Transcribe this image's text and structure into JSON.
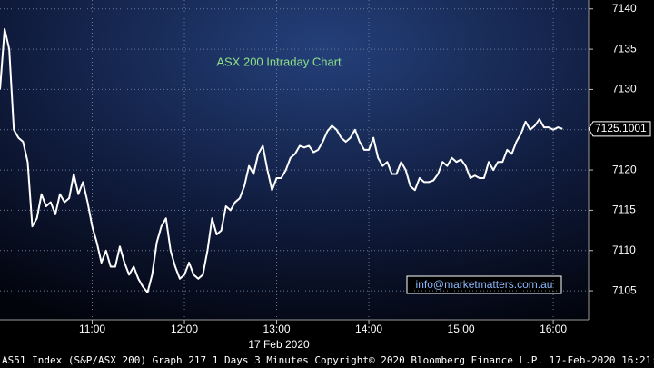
{
  "chart_data": {
    "type": "line",
    "title": "ASX 200 Intraday Chart",
    "annotations": [
      "info@marketmatters.com.au",
      "17 Feb 2020"
    ],
    "footer": "AS51 Index (S&P/ASX 200) Graph 217 1 Days 3 Minutes Copyright© 2020 Bloomberg Finance L.P. 17-Feb-2020 16:21:11",
    "x": [
      "10:00",
      "10:03",
      "10:06",
      "10:09",
      "10:12",
      "10:15",
      "10:18",
      "10:21",
      "10:24",
      "10:27",
      "10:30",
      "10:33",
      "10:36",
      "10:39",
      "10:42",
      "10:45",
      "10:48",
      "10:51",
      "10:54",
      "10:57",
      "11:00",
      "11:03",
      "11:06",
      "11:09",
      "11:12",
      "11:15",
      "11:18",
      "11:21",
      "11:24",
      "11:27",
      "11:30",
      "11:33",
      "11:36",
      "11:39",
      "11:42",
      "11:45",
      "11:48",
      "11:51",
      "11:54",
      "11:57",
      "12:00",
      "12:03",
      "12:06",
      "12:09",
      "12:12",
      "12:15",
      "12:18",
      "12:21",
      "12:24",
      "12:27",
      "12:30",
      "12:33",
      "12:36",
      "12:39",
      "12:42",
      "12:45",
      "12:48",
      "12:51",
      "12:54",
      "12:57",
      "13:00",
      "13:03",
      "13:06",
      "13:09",
      "13:12",
      "13:15",
      "13:18",
      "13:21",
      "13:24",
      "13:27",
      "13:30",
      "13:33",
      "13:36",
      "13:39",
      "13:42",
      "13:45",
      "13:48",
      "13:51",
      "13:54",
      "13:57",
      "14:00",
      "14:03",
      "14:06",
      "14:09",
      "14:12",
      "14:15",
      "14:18",
      "14:21",
      "14:24",
      "14:27",
      "14:30",
      "14:33",
      "14:36",
      "14:39",
      "14:42",
      "14:45",
      "14:48",
      "14:51",
      "14:54",
      "14:57",
      "15:00",
      "15:03",
      "15:06",
      "15:09",
      "15:12",
      "15:15",
      "15:18",
      "15:21",
      "15:24",
      "15:27",
      "15:30",
      "15:33",
      "15:36",
      "15:39",
      "15:42",
      "15:45",
      "15:48",
      "15:51",
      "15:54",
      "15:57",
      "16:00",
      "16:03",
      "16:06"
    ],
    "series": [
      {
        "name": "AS51 Index",
        "color": "#ffffff",
        "values": [
          7130,
          7137.5,
          7135,
          7125,
          7124,
          7123.5,
          7121,
          7113,
          7114,
          7117,
          7115.5,
          7116,
          7114.5,
          7117,
          7116,
          7116.5,
          7119.5,
          7117,
          7118.5,
          7116,
          7113,
          7111,
          7108.5,
          7110,
          7108,
          7108,
          7110.5,
          7108.5,
          7107,
          7108,
          7106.5,
          7105.5,
          7104.8,
          7107,
          7111,
          7113,
          7114,
          7110,
          7108,
          7106.5,
          7107,
          7108.5,
          7107,
          7106.5,
          7107,
          7110,
          7114,
          7112,
          7112.5,
          7115.5,
          7115,
          7116,
          7116.5,
          7118,
          7120.5,
          7119.5,
          7122,
          7123,
          7120,
          7117.5,
          7119,
          7119,
          7120,
          7121.5,
          7122,
          7123,
          7122.8,
          7123,
          7122.2,
          7122.5,
          7123.5,
          7124.8,
          7125.5,
          7125,
          7124,
          7123.5,
          7124,
          7125,
          7123.5,
          7122.5,
          7122.5,
          7124,
          7121.5,
          7120.5,
          7121,
          7119.5,
          7119.5,
          7121,
          7120,
          7118,
          7117.5,
          7119,
          7118.5,
          7118.5,
          7118.7,
          7119.5,
          7121,
          7120.5,
          7121.5,
          7121,
          7121.3,
          7120.5,
          7119,
          7119.3,
          7119,
          7119,
          7121,
          7120,
          7121,
          7121,
          7122.5,
          7122,
          7123.5,
          7124.5,
          7126,
          7125,
          7125.5,
          7126.3,
          7125.3,
          7125.3,
          7125,
          7125.3,
          7125.1001
        ]
      }
    ],
    "xlim": [
      "10:00",
      "16:23"
    ],
    "xticks": [
      "11:00",
      "12:00",
      "13:00",
      "14:00",
      "15:00",
      "16:00"
    ],
    "ylim": [
      7101.4,
      7141.1
    ],
    "yticks": [
      7105,
      7110,
      7115,
      7120,
      7125,
      7130,
      7135,
      7140
    ],
    "grid": true
  }
}
